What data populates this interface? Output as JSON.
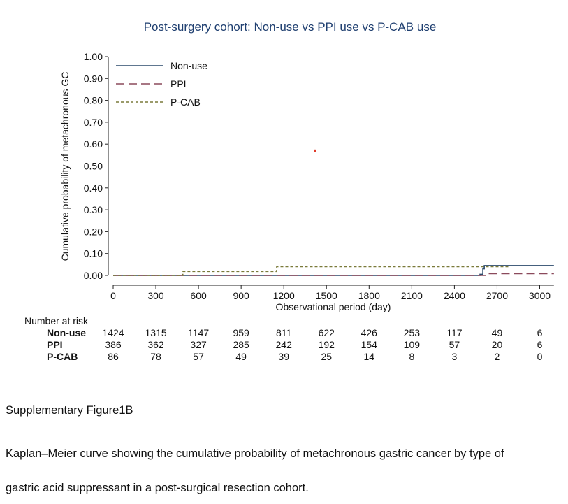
{
  "chart_data": {
    "type": "line",
    "title": "Post-surgery cohort: Non-use vs PPI use vs P-CAB use",
    "xlabel": "Observational period (day)",
    "ylabel": "Cumulative probability of metachronous GC",
    "xlim": [
      0,
      3100
    ],
    "ylim": [
      0,
      1.0
    ],
    "x_ticks": [
      "0",
      "300",
      "600",
      "900",
      "1200",
      "1500",
      "1800",
      "2100",
      "2400",
      "2700",
      "3000"
    ],
    "y_ticks": [
      "0.00",
      "0.10",
      "0.20",
      "0.30",
      "0.40",
      "0.50",
      "0.60",
      "0.70",
      "0.80",
      "0.90",
      "1.00"
    ],
    "grid": false,
    "legend_position": "top-left",
    "series": [
      {
        "name": "Non-use",
        "style": "solid",
        "color": "#2b4a6b",
        "x": [
          0,
          2580,
          2600,
          2610,
          3100
        ],
        "y": [
          0.0,
          0.005,
          0.03,
          0.045,
          0.045
        ]
      },
      {
        "name": "PPI",
        "style": "dashed",
        "color": "#8b4a5c",
        "x": [
          0,
          2630,
          3100
        ],
        "y": [
          0.0,
          0.008,
          0.008
        ]
      },
      {
        "name": "P-CAB",
        "style": "dotted",
        "color": "#7a7a3a",
        "x": [
          0,
          490,
          1150,
          2790
        ],
        "y": [
          0.0,
          0.018,
          0.04,
          0.04
        ]
      }
    ],
    "annotation_point": {
      "x": 1420,
      "y": 0.57,
      "color": "#e03a2a"
    },
    "risk_table": {
      "title": "Number at risk",
      "rows": [
        {
          "label": "Non-use",
          "values": [
            "1424",
            "1315",
            "1147",
            "959",
            "811",
            "622",
            "426",
            "253",
            "117",
            "49",
            "6"
          ]
        },
        {
          "label": "PPI",
          "values": [
            "386",
            "362",
            "327",
            "285",
            "242",
            "192",
            "154",
            "109",
            "57",
            "20",
            "6"
          ]
        },
        {
          "label": "P-CAB",
          "values": [
            "86",
            "78",
            "57",
            "49",
            "39",
            "25",
            "14",
            "8",
            "3",
            "2",
            "0"
          ]
        }
      ]
    }
  },
  "document": {
    "figure_label": "Supplementary Figure1B",
    "caption_line1": "Kaplan–Meier curve showing the cumulative probability of metachronous gastric cancer by type of",
    "caption_line2": "gastric acid suppressant in a post-surgical resection cohort."
  }
}
